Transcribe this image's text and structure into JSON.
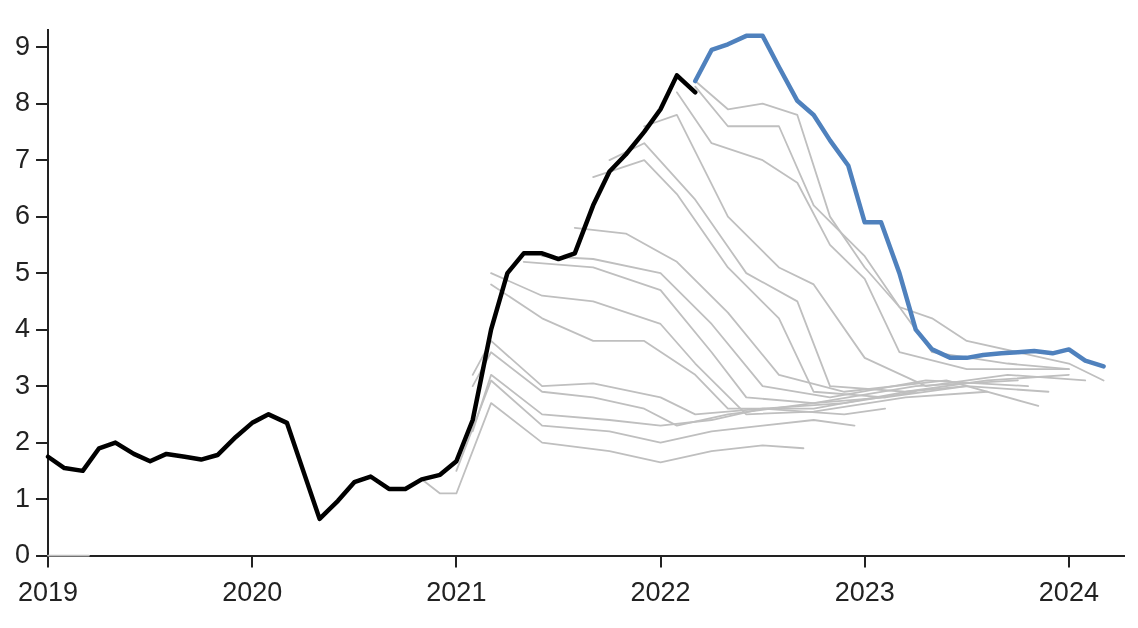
{
  "chart_data": {
    "type": "line",
    "xlim": [
      2019,
      2024.27
    ],
    "xticks": [
      2019,
      2020,
      2021,
      2022,
      2023,
      2024
    ],
    "ylim": [
      0,
      9.3
    ],
    "yticks": [
      0,
      1,
      2,
      3,
      4,
      5,
      6,
      7,
      8,
      9
    ],
    "grid": false,
    "legend": false,
    "marker": "none",
    "line_style": "solid",
    "series": [
      {
        "color": "#4f81bd",
        "x": [
          2022.17,
          2022.25,
          2022.33,
          2022.42,
          2022.5,
          2022.58,
          2022.67,
          2022.75,
          2022.83,
          2022.92,
          2023.0,
          2023.08,
          2023.17,
          2023.25,
          2023.33,
          2023.42,
          2023.5,
          2023.58,
          2023.67,
          2023.75,
          2023.83,
          2023.92,
          2024.0,
          2024.08,
          2024.17
        ],
        "values": [
          8.4,
          8.95,
          9.05,
          9.2,
          9.2,
          8.65,
          8.05,
          7.8,
          7.35,
          6.9,
          5.9,
          5.9,
          5.0,
          4.0,
          3.65,
          3.5,
          3.5,
          3.55,
          3.58,
          3.6,
          3.62,
          3.58,
          3.65,
          3.45,
          3.35
        ]
      },
      {
        "color": "#000000",
        "x": [
          2019.0,
          2019.08,
          2019.17,
          2019.25,
          2019.33,
          2019.42,
          2019.5,
          2019.58,
          2019.67,
          2019.75,
          2019.83,
          2019.92,
          2020.0,
          2020.08,
          2020.17,
          2020.25,
          2020.33,
          2020.42,
          2020.5,
          2020.58,
          2020.67,
          2020.75,
          2020.83,
          2020.92,
          2021.0,
          2021.08,
          2021.17,
          2021.25,
          2021.33,
          2021.42,
          2021.5,
          2021.58,
          2021.67,
          2021.75,
          2021.83,
          2021.92,
          2022.0,
          2022.08,
          2022.17
        ],
        "values": [
          1.75,
          1.55,
          1.5,
          1.9,
          2.0,
          1.8,
          1.67,
          1.8,
          1.75,
          1.7,
          1.78,
          2.1,
          2.35,
          2.5,
          2.35,
          1.5,
          0.65,
          0.97,
          1.3,
          1.4,
          1.18,
          1.18,
          1.35,
          1.43,
          1.67,
          2.4,
          4.0,
          5.0,
          5.35,
          5.35,
          5.25,
          5.35,
          6.2,
          6.8,
          7.1,
          7.5,
          7.9,
          8.5,
          8.2
        ]
      },
      {
        "color": "#bfbfbf",
        "x": [
          2019.0,
          2019.2
        ],
        "values": [
          0,
          0
        ]
      },
      {
        "color": "#bfbfbf",
        "x": [
          2020.83,
          2020.92,
          2021.0,
          2021.17,
          2021.42,
          2021.75,
          2022.0,
          2022.25,
          2022.5,
          2022.7
        ],
        "values": [
          1.35,
          1.1,
          1.1,
          2.7,
          2.0,
          1.85,
          1.65,
          1.85,
          1.95,
          1.9
        ]
      },
      {
        "color": "#bfbfbf",
        "x": [
          2021.0,
          2021.17,
          2021.42,
          2021.75,
          2022.0,
          2022.25,
          2022.5,
          2022.75,
          2022.95
        ],
        "values": [
          1.5,
          3.1,
          2.3,
          2.2,
          2.0,
          2.2,
          2.3,
          2.4,
          2.3
        ]
      },
      {
        "color": "#bfbfbf",
        "x": [
          2021.08,
          2021.17,
          2021.42,
          2021.75,
          2022.0,
          2022.25,
          2022.5,
          2022.9,
          2023.1
        ],
        "values": [
          2.2,
          3.2,
          2.5,
          2.4,
          2.3,
          2.4,
          2.6,
          2.5,
          2.6
        ]
      },
      {
        "color": "#bfbfbf",
        "x": [
          2021.08,
          2021.17,
          2021.42,
          2021.67,
          2021.92,
          2022.08,
          2022.33,
          2022.75,
          2023.1
        ],
        "values": [
          3.0,
          3.6,
          2.9,
          2.8,
          2.6,
          2.3,
          2.5,
          2.7,
          2.8
        ]
      },
      {
        "color": "#bfbfbf",
        "x": [
          2021.08,
          2021.17,
          2021.42,
          2021.67,
          2022.0,
          2022.17,
          2022.5,
          2022.9,
          2023.25
        ],
        "values": [
          3.2,
          3.8,
          3.0,
          3.05,
          2.8,
          2.5,
          2.6,
          2.7,
          2.9
        ]
      },
      {
        "color": "#bfbfbf",
        "x": [
          2021.17,
          2021.42,
          2021.67,
          2021.92,
          2022.17,
          2022.33,
          2022.75,
          2023.2,
          2023.5
        ],
        "values": [
          4.8,
          4.2,
          3.8,
          3.8,
          3.2,
          2.6,
          2.6,
          2.9,
          3.0
        ]
      },
      {
        "color": "#bfbfbf",
        "x": [
          2021.17,
          2021.42,
          2021.67,
          2022.0,
          2022.17,
          2022.42,
          2022.75,
          2023.2,
          2023.6
        ],
        "values": [
          5.0,
          4.6,
          4.5,
          4.1,
          3.4,
          2.5,
          2.55,
          2.8,
          2.9
        ]
      },
      {
        "color": "#bfbfbf",
        "x": [
          2021.33,
          2021.67,
          2022.0,
          2022.25,
          2022.42,
          2022.75,
          2023.25,
          2023.75
        ],
        "values": [
          5.2,
          5.1,
          4.7,
          3.6,
          2.8,
          2.7,
          3.0,
          3.1
        ]
      },
      {
        "color": "#bfbfbf",
        "x": [
          2021.42,
          2021.67,
          2022.0,
          2022.25,
          2022.5,
          2022.83,
          2023.3,
          2023.8
        ],
        "values": [
          5.3,
          5.25,
          5.0,
          4.1,
          3.0,
          2.8,
          3.1,
          3.0
        ]
      },
      {
        "color": "#bfbfbf",
        "x": [
          2021.58,
          2021.83,
          2022.08,
          2022.33,
          2022.58,
          2022.9,
          2023.4,
          2023.85
        ],
        "values": [
          5.8,
          5.7,
          5.2,
          4.3,
          3.2,
          2.9,
          3.1,
          2.65
        ]
      },
      {
        "color": "#bfbfbf",
        "x": [
          2021.67,
          2021.92,
          2022.08,
          2022.33,
          2022.58,
          2022.75,
          2023.1,
          2023.5,
          2023.9
        ],
        "values": [
          6.7,
          7.0,
          6.4,
          5.1,
          4.2,
          2.9,
          2.8,
          3.0,
          2.9
        ]
      },
      {
        "color": "#bfbfbf",
        "x": [
          2021.75,
          2021.92,
          2022.17,
          2022.42,
          2022.67,
          2022.83,
          2023.2,
          2023.6,
          2024.0
        ],
        "values": [
          7.0,
          7.3,
          6.3,
          5.0,
          4.5,
          3.0,
          2.9,
          3.1,
          3.2
        ]
      },
      {
        "color": "#bfbfbf",
        "x": [
          2021.92,
          2022.08,
          2022.33,
          2022.58,
          2022.75,
          2023.0,
          2023.3,
          2023.7,
          2024.08
        ],
        "values": [
          7.6,
          7.8,
          6.0,
          5.1,
          4.8,
          3.5,
          3.0,
          3.2,
          3.1
        ]
      },
      {
        "color": "#bfbfbf",
        "x": [
          2022.08,
          2022.25,
          2022.5,
          2022.67,
          2022.83,
          2023.0,
          2023.17,
          2023.5,
          2024.0
        ],
        "values": [
          8.2,
          7.3,
          7.0,
          6.6,
          5.5,
          4.9,
          3.6,
          3.3,
          3.3
        ]
      },
      {
        "color": "#bfbfbf",
        "x": [
          2022.17,
          2022.33,
          2022.58,
          2022.75,
          2023.0,
          2023.17,
          2023.33,
          2023.7,
          2024.0
        ],
        "values": [
          8.3,
          7.6,
          7.6,
          6.2,
          5.3,
          4.4,
          3.6,
          3.4,
          3.3
        ]
      },
      {
        "color": "#bfbfbf",
        "x": [
          2022.17,
          2022.33,
          2022.5,
          2022.67,
          2022.83,
          2023.0,
          2023.17,
          2023.33,
          2023.5,
          2024.0,
          2024.17
        ],
        "values": [
          8.4,
          7.9,
          8.0,
          7.8,
          6.0,
          5.1,
          4.4,
          4.2,
          3.8,
          3.4,
          3.1
        ]
      }
    ]
  }
}
